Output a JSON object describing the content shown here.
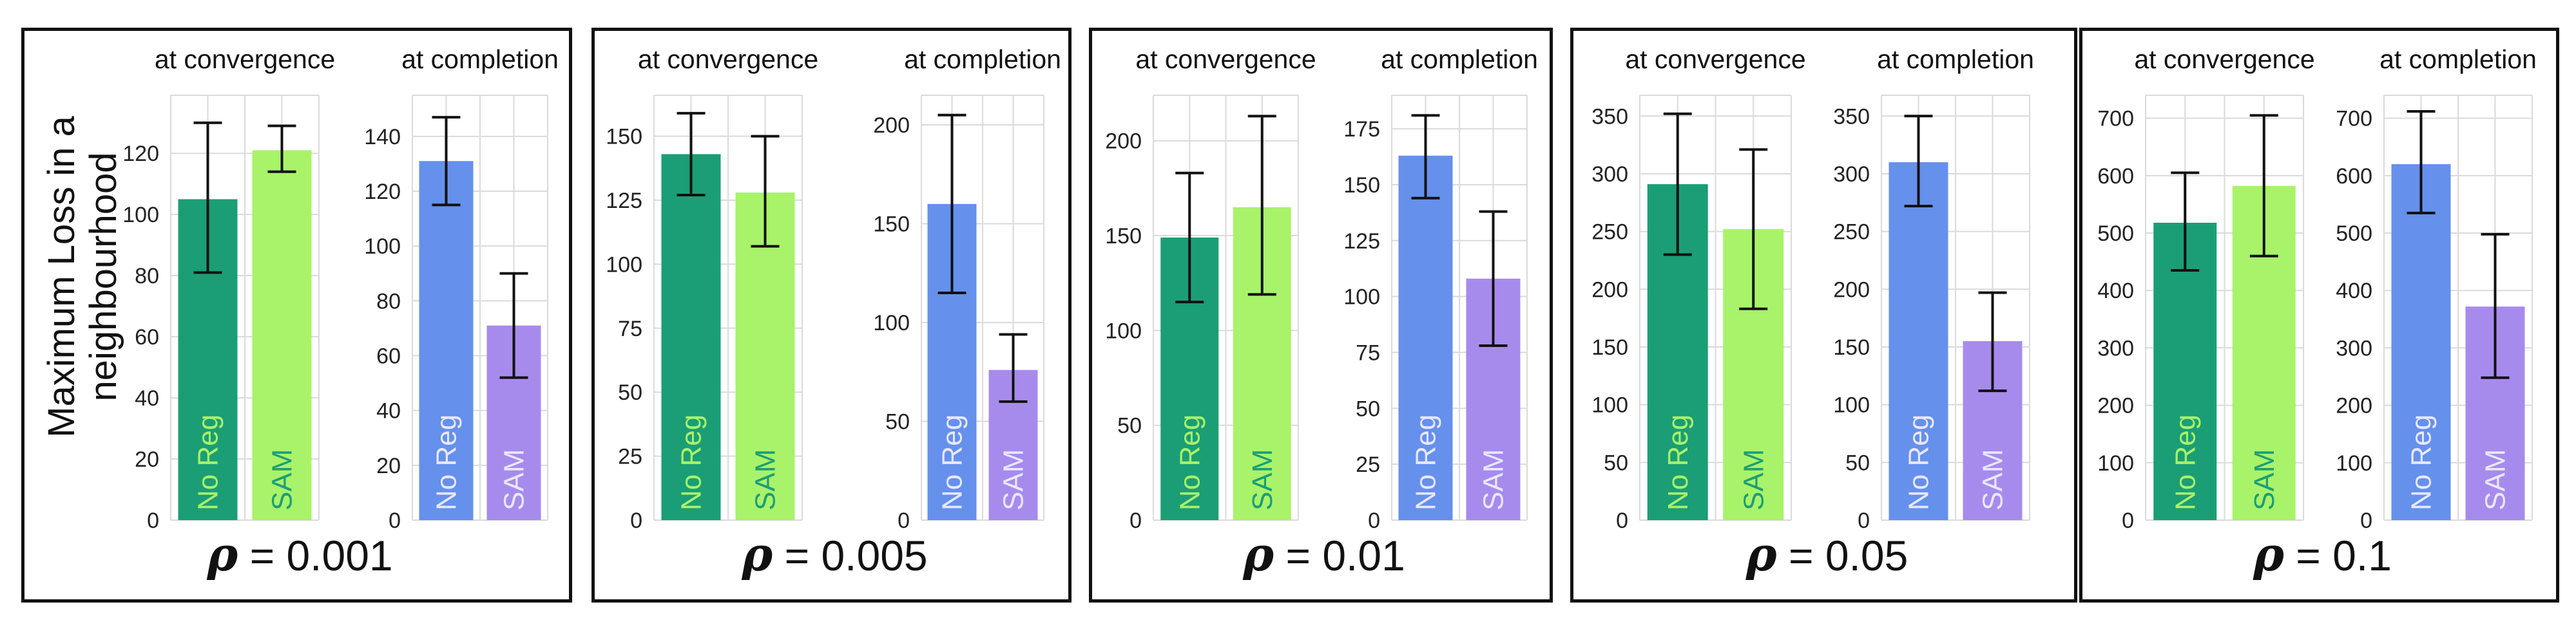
{
  "figure": {
    "ylabel_line1": "Maximum Loss in a",
    "ylabel_line2": "neighbourhood",
    "rho_symbol": "ρ",
    "colors": {
      "noreg_convergence": "#1b9e75",
      "sam_convergence": "#a8f36a",
      "noreg_completion": "#6590ec",
      "sam_completion": "#a78bec",
      "label_on_dark_green": "#a8f36a",
      "label_on_light_green": "#1b9e75",
      "label_on_blue_purple": "#e8e8ff"
    }
  },
  "chart_data": [
    {
      "type": "bar",
      "rho": "0.001",
      "title": "at convergence",
      "categories": [
        "No Reg",
        "SAM"
      ],
      "values": [
        105,
        121
      ],
      "errors_low": [
        81,
        114
      ],
      "errors_high": [
        130,
        129
      ],
      "yticks": [
        0,
        20,
        40,
        60,
        80,
        100,
        120
      ],
      "ylim": [
        0,
        139
      ]
    },
    {
      "type": "bar",
      "rho": "0.001",
      "title": "at completion",
      "categories": [
        "No Reg",
        "SAM"
      ],
      "values": [
        131,
        71
      ],
      "errors_low": [
        115,
        52
      ],
      "errors_high": [
        147,
        90
      ],
      "yticks": [
        0,
        20,
        40,
        60,
        80,
        100,
        120,
        140
      ],
      "ylim": [
        0,
        155
      ]
    },
    {
      "type": "bar",
      "rho": "0.005",
      "title": "at convergence",
      "categories": [
        "No Reg",
        "SAM"
      ],
      "values": [
        143,
        128
      ],
      "errors_low": [
        127,
        107
      ],
      "errors_high": [
        159,
        150
      ],
      "yticks": [
        0,
        25,
        50,
        75,
        100,
        125,
        150
      ],
      "ylim": [
        0,
        166
      ]
    },
    {
      "type": "bar",
      "rho": "0.005",
      "title": "at completion",
      "categories": [
        "No Reg",
        "SAM"
      ],
      "values": [
        160,
        76
      ],
      "errors_low": [
        115,
        60
      ],
      "errors_high": [
        205,
        94
      ],
      "yticks": [
        0,
        50,
        100,
        150,
        200
      ],
      "ylim": [
        0,
        215
      ]
    },
    {
      "type": "bar",
      "rho": "0.01",
      "title": "at convergence",
      "categories": [
        "No Reg",
        "SAM"
      ],
      "values": [
        149,
        165
      ],
      "errors_low": [
        115,
        119
      ],
      "errors_high": [
        183,
        213
      ],
      "yticks": [
        0,
        50,
        100,
        150,
        200
      ],
      "ylim": [
        0,
        224
      ]
    },
    {
      "type": "bar",
      "rho": "0.01",
      "title": "at completion",
      "categories": [
        "No Reg",
        "SAM"
      ],
      "values": [
        163,
        108
      ],
      "errors_low": [
        144,
        78
      ],
      "errors_high": [
        181,
        138
      ],
      "yticks": [
        0,
        25,
        50,
        75,
        100,
        125,
        150,
        175
      ],
      "ylim": [
        0,
        190
      ]
    },
    {
      "type": "bar",
      "rho": "0.05",
      "title": "at convergence",
      "categories": [
        "No Reg",
        "SAM"
      ],
      "values": [
        291,
        252
      ],
      "errors_low": [
        230,
        183
      ],
      "errors_high": [
        352,
        321
      ],
      "yticks": [
        0,
        50,
        100,
        150,
        200,
        250,
        300,
        350
      ],
      "ylim": [
        0,
        368
      ]
    },
    {
      "type": "bar",
      "rho": "0.05",
      "title": "at completion",
      "categories": [
        "No Reg",
        "SAM"
      ],
      "values": [
        310,
        155
      ],
      "errors_low": [
        272,
        112
      ],
      "errors_high": [
        350,
        197
      ],
      "yticks": [
        0,
        50,
        100,
        150,
        200,
        250,
        300,
        350
      ],
      "ylim": [
        0,
        368
      ]
    },
    {
      "type": "bar",
      "rho": "0.1",
      "title": "at convergence",
      "categories": [
        "No Reg",
        "SAM"
      ],
      "values": [
        518,
        582
      ],
      "errors_low": [
        435,
        460
      ],
      "errors_high": [
        605,
        705
      ],
      "yticks": [
        0,
        100,
        200,
        300,
        400,
        500,
        600,
        700
      ],
      "ylim": [
        0,
        740
      ]
    },
    {
      "type": "bar",
      "rho": "0.1",
      "title": "at completion",
      "categories": [
        "No Reg",
        "SAM"
      ],
      "values": [
        620,
        372
      ],
      "errors_low": [
        535,
        248
      ],
      "errors_high": [
        712,
        498
      ],
      "yticks": [
        0,
        100,
        200,
        300,
        400,
        500,
        600,
        700
      ],
      "ylim": [
        0,
        740
      ]
    }
  ]
}
